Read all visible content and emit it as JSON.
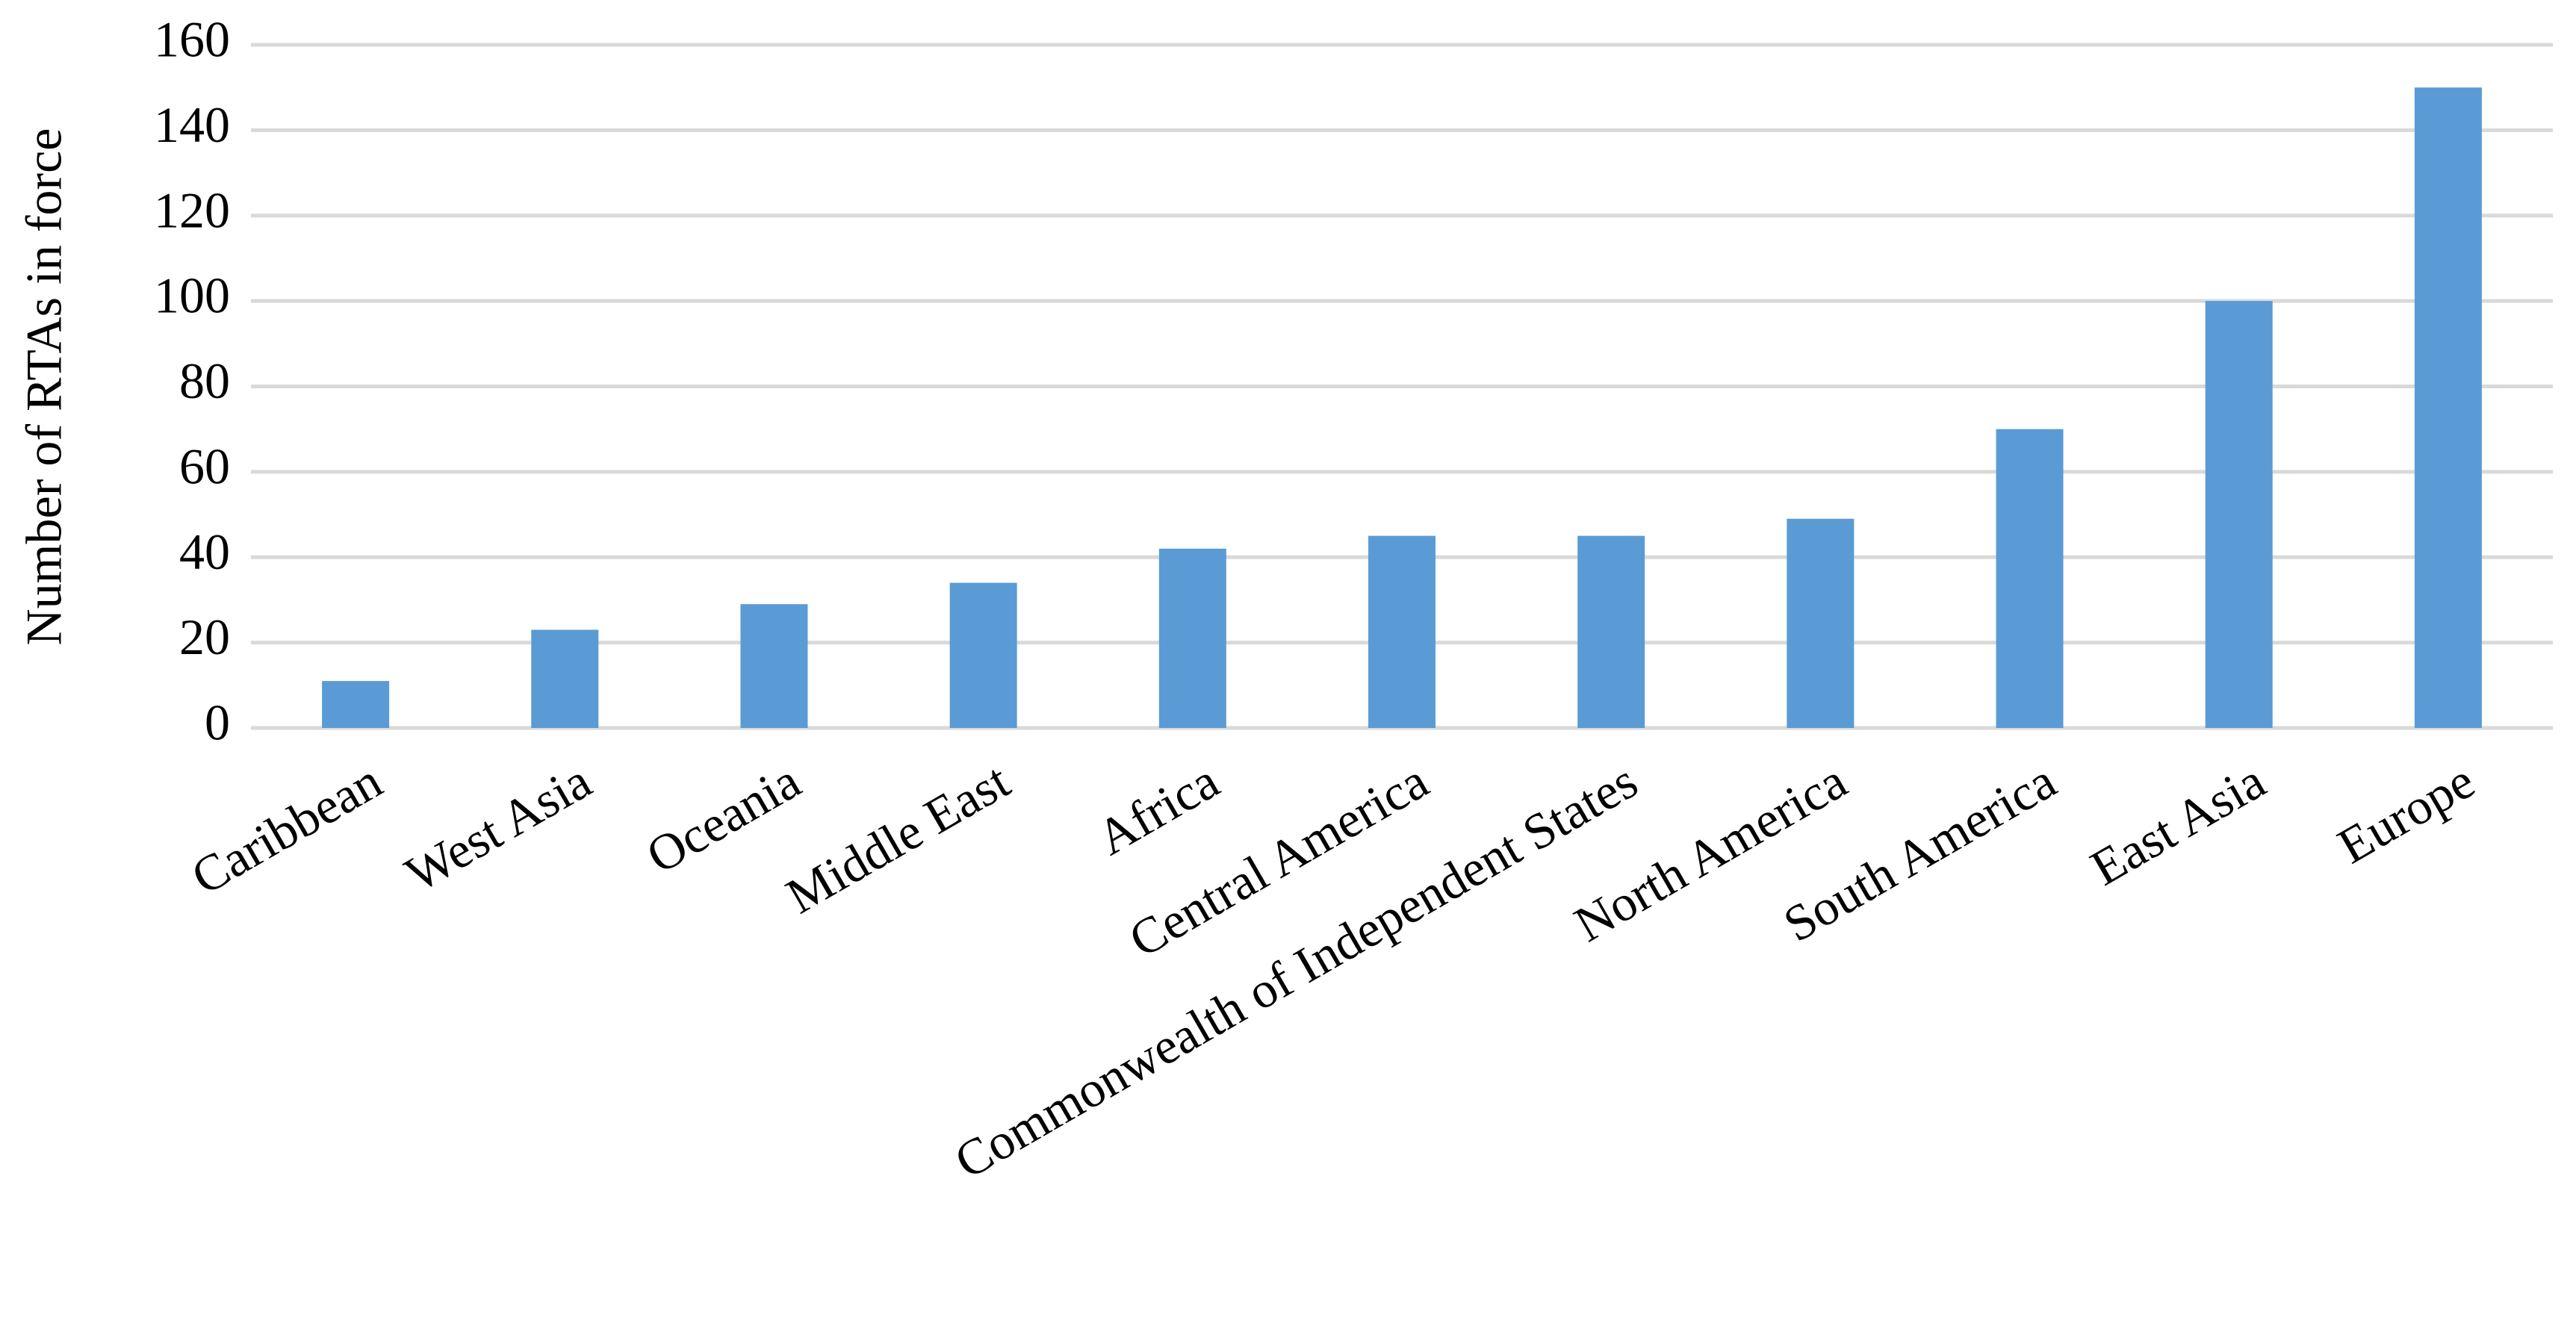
{
  "chart_data": {
    "type": "bar",
    "y_label": "Number of RTAs in force",
    "categories": [
      "Caribbean",
      "West Asia",
      "Oceania",
      "Middle East",
      "Africa",
      "Central America",
      "Commonwealth of Independent States",
      "North America",
      "South America",
      "East Asia",
      "Europe"
    ],
    "values": [
      11,
      23,
      29,
      34,
      42,
      45,
      45,
      49,
      70,
      100,
      150
    ],
    "color": "#5b9bd5",
    "ylim": [
      0,
      160
    ],
    "yticks": [
      0,
      20,
      40,
      60,
      80,
      100,
      120,
      140,
      160
    ],
    "grid": true
  }
}
